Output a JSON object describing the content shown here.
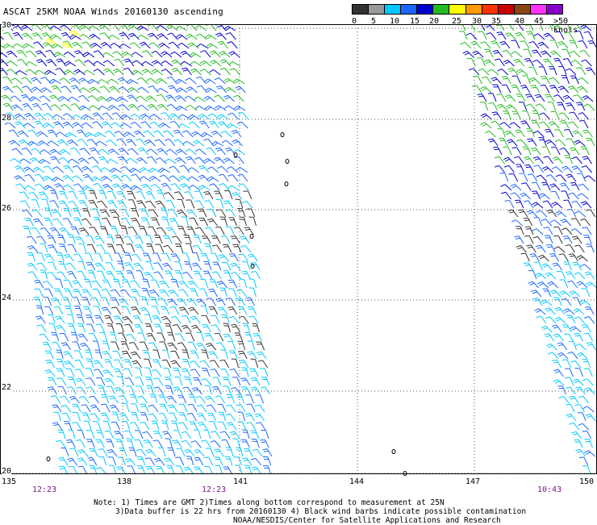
{
  "title": "ASCAT 25KM NOAA Winds 20160130 ascending",
  "colorbar": {
    "labels": [
      "0",
      "5",
      "10",
      "15",
      "20",
      "25",
      "30",
      "35",
      "40",
      "45",
      ">50 knots"
    ],
    "colors": [
      "#333333",
      "#9a9a9a",
      "#00c8ff",
      "#1a66ff",
      "#0000cc",
      "#22bb22",
      "#ffff00",
      "#ff9900",
      "#ff3300",
      "#cc0000",
      "#8b4513",
      "#ff33ff",
      "#8800cc"
    ]
  },
  "map": {
    "lat_labels": [
      "30",
      "28",
      "26",
      "24",
      "22",
      "20"
    ],
    "lon_labels": [
      "135",
      "138",
      "141",
      "144",
      "147",
      "150"
    ],
    "time_labels": [
      "12:23",
      "12:23",
      "10:43"
    ]
  },
  "notes": {
    "line1": "Note: 1) Times are GMT 2)Times along bottom correspond to measurement at 25N",
    "line2": "3)Data buffer is 22 hrs from 20160130 4) Black wind barbs indicate possible contamination",
    "line3": "NOAA/NESDIS/Center for Satellite Applications and Research"
  }
}
